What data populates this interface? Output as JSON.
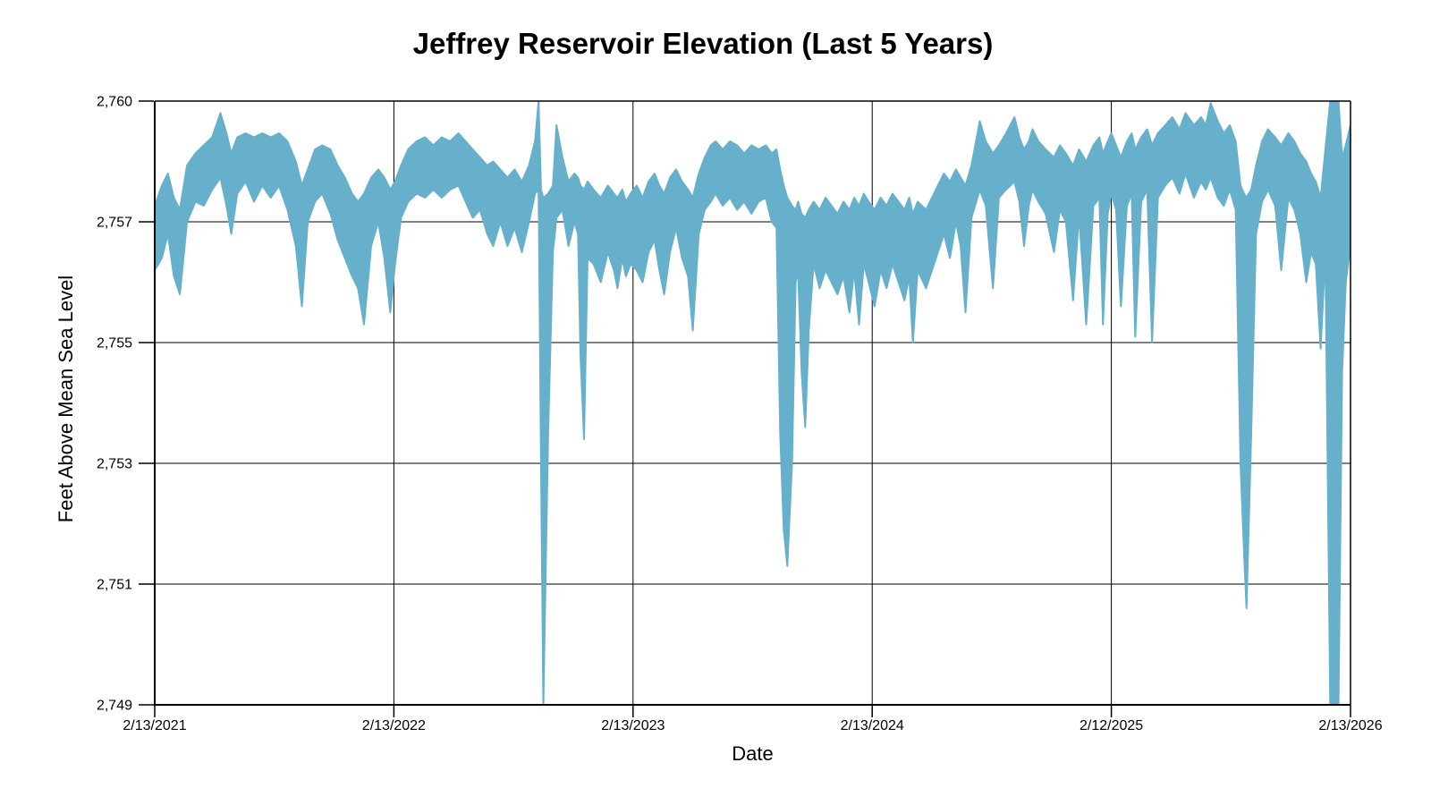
{
  "chart_data": {
    "type": "line",
    "title": "Jeffrey Reservoir Elevation (Last 5 Years)",
    "xlabel": "Date",
    "ylabel": "Feet Above Mean Sea Level",
    "x_tick_labels": [
      "2/13/2021",
      "2/13/2022",
      "2/13/2023",
      "2/13/2024",
      "2/12/2025",
      "2/13/2026"
    ],
    "y_tick_values": [
      2760,
      2757,
      2755,
      2753,
      2751,
      2749
    ],
    "y_tick_labels": [
      "2,760",
      "2,757",
      "2,755",
      "2,753",
      "2,751",
      "2,749"
    ],
    "ylim": [
      2749,
      2760
    ],
    "grid": true,
    "legend": false,
    "line_color": "#66B0CC",
    "axis_color": "#000000",
    "series_name": "Reservoir elevation",
    "band_format": [
      "x_permille_of_time_axis",
      "upper_ft",
      "lower_ft"
    ],
    "band": [
      [
        0,
        2757.4,
        2756.2
      ],
      [
        6,
        2757.9,
        2756.4
      ],
      [
        11,
        2758.2,
        2756.8
      ],
      [
        16,
        2757.6,
        2756.1
      ],
      [
        21,
        2757.3,
        2755.8
      ],
      [
        27,
        2758.4,
        2757.0
      ],
      [
        34,
        2758.7,
        2757.5
      ],
      [
        41,
        2758.9,
        2757.4
      ],
      [
        48,
        2759.1,
        2757.8
      ],
      [
        55,
        2759.7,
        2758.1
      ],
      [
        60,
        2759.2,
        2757.4
      ],
      [
        64,
        2758.7,
        2756.8
      ],
      [
        69,
        2759.1,
        2757.7
      ],
      [
        76,
        2759.2,
        2758.0
      ],
      [
        83,
        2759.1,
        2757.5
      ],
      [
        90,
        2759.2,
        2757.9
      ],
      [
        97,
        2759.1,
        2757.6
      ],
      [
        104,
        2759.2,
        2757.9
      ],
      [
        111,
        2759.0,
        2757.3
      ],
      [
        118,
        2758.5,
        2756.6
      ],
      [
        123,
        2757.9,
        2755.6
      ],
      [
        128,
        2758.3,
        2757.0
      ],
      [
        134,
        2758.8,
        2757.5
      ],
      [
        140,
        2758.9,
        2757.7
      ],
      [
        147,
        2758.8,
        2757.2
      ],
      [
        153,
        2758.4,
        2756.7
      ],
      [
        159,
        2758.1,
        2756.4
      ],
      [
        165,
        2757.7,
        2756.1
      ],
      [
        170,
        2757.5,
        2755.9
      ],
      [
        175,
        2757.7,
        2755.3
      ],
      [
        181,
        2758.1,
        2756.6
      ],
      [
        187,
        2758.3,
        2757.0
      ],
      [
        192,
        2758.1,
        2756.4
      ],
      [
        197,
        2757.8,
        2755.5
      ],
      [
        201,
        2758.0,
        2756.3
      ],
      [
        206,
        2758.4,
        2757.1
      ],
      [
        212,
        2758.8,
        2757.5
      ],
      [
        219,
        2759.0,
        2757.7
      ],
      [
        226,
        2759.1,
        2757.6
      ],
      [
        233,
        2758.9,
        2757.8
      ],
      [
        240,
        2759.1,
        2757.6
      ],
      [
        247,
        2759.0,
        2757.8
      ],
      [
        254,
        2759.2,
        2757.9
      ],
      [
        260,
        2759.0,
        2757.5
      ],
      [
        266,
        2758.8,
        2757.1
      ],
      [
        272,
        2758.6,
        2757.3
      ],
      [
        278,
        2758.4,
        2756.8
      ],
      [
        283,
        2758.5,
        2756.6
      ],
      [
        289,
        2758.3,
        2757.0
      ],
      [
        295,
        2758.1,
        2756.6
      ],
      [
        301,
        2758.3,
        2756.9
      ],
      [
        307,
        2758.0,
        2756.5
      ],
      [
        313,
        2758.4,
        2757.0
      ],
      [
        318,
        2759.0,
        2757.7
      ],
      [
        321,
        2760.0,
        2757.8
      ],
      [
        323,
        2757.8,
        2753.0
      ],
      [
        325,
        2757.6,
        2749.0
      ],
      [
        329,
        2757.7,
        2753.5
      ],
      [
        333,
        2757.9,
        2756.5
      ],
      [
        336,
        2759.4,
        2757.1
      ],
      [
        341,
        2758.6,
        2757.3
      ],
      [
        346,
        2758.0,
        2756.6
      ],
      [
        351,
        2758.2,
        2757.0
      ],
      [
        354,
        2758.1,
        2756.8
      ],
      [
        356,
        2757.9,
        2754.8
      ],
      [
        359,
        2757.8,
        2753.4
      ],
      [
        362,
        2758.0,
        2756.4
      ],
      [
        367,
        2757.8,
        2756.3
      ],
      [
        373,
        2757.6,
        2756.0
      ],
      [
        379,
        2757.9,
        2756.5
      ],
      [
        384,
        2757.7,
        2756.2
      ],
      [
        387,
        2757.6,
        2755.9
      ],
      [
        391,
        2757.8,
        2756.4
      ],
      [
        394,
        2757.5,
        2756.1
      ],
      [
        398,
        2757.7,
        2756.3
      ],
      [
        403,
        2757.9,
        2756.2
      ],
      [
        408,
        2757.6,
        2756.0
      ],
      [
        413,
        2758.0,
        2756.5
      ],
      [
        418,
        2758.2,
        2756.7
      ],
      [
        422,
        2757.9,
        2756.2
      ],
      [
        426,
        2757.7,
        2755.8
      ],
      [
        431,
        2758.1,
        2756.5
      ],
      [
        436,
        2758.3,
        2756.9
      ],
      [
        441,
        2758.0,
        2756.4
      ],
      [
        446,
        2757.8,
        2756.1
      ],
      [
        450,
        2757.6,
        2755.2
      ],
      [
        455,
        2758.2,
        2756.8
      ],
      [
        460,
        2758.6,
        2757.3
      ],
      [
        465,
        2758.9,
        2757.5
      ],
      [
        469,
        2759.0,
        2757.7
      ],
      [
        475,
        2758.8,
        2757.4
      ],
      [
        481,
        2759.0,
        2757.6
      ],
      [
        487,
        2758.9,
        2757.3
      ],
      [
        493,
        2758.7,
        2757.5
      ],
      [
        499,
        2758.9,
        2757.2
      ],
      [
        505,
        2758.8,
        2757.5
      ],
      [
        511,
        2758.9,
        2757.6
      ],
      [
        516,
        2758.7,
        2757.0
      ],
      [
        520,
        2758.8,
        2756.9
      ],
      [
        523,
        2758.3,
        2753.5
      ],
      [
        526,
        2757.9,
        2751.9
      ],
      [
        529,
        2757.6,
        2751.3
      ],
      [
        533,
        2757.4,
        2753.0
      ],
      [
        536,
        2757.3,
        2756.0
      ],
      [
        538,
        2757.5,
        2756.2
      ],
      [
        541,
        2757.2,
        2754.5
      ],
      [
        544,
        2757.1,
        2753.6
      ],
      [
        547,
        2757.3,
        2755.2
      ],
      [
        551,
        2757.5,
        2756.3
      ],
      [
        556,
        2757.3,
        2755.9
      ],
      [
        561,
        2757.6,
        2756.2
      ],
      [
        566,
        2757.4,
        2756.0
      ],
      [
        571,
        2757.2,
        2755.8
      ],
      [
        576,
        2757.5,
        2756.1
      ],
      [
        581,
        2757.3,
        2755.5
      ],
      [
        585,
        2757.6,
        2756.2
      ],
      [
        589,
        2757.4,
        2755.3
      ],
      [
        593,
        2757.7,
        2756.3
      ],
      [
        597,
        2757.5,
        2756.0
      ],
      [
        602,
        2757.3,
        2755.6
      ],
      [
        607,
        2757.6,
        2756.2
      ],
      [
        612,
        2757.4,
        2755.9
      ],
      [
        617,
        2757.7,
        2756.3
      ],
      [
        622,
        2757.5,
        2756.0
      ],
      [
        627,
        2757.3,
        2755.7
      ],
      [
        631,
        2757.6,
        2756.1
      ],
      [
        634,
        2757.2,
        2755.0
      ],
      [
        638,
        2757.5,
        2756.2
      ],
      [
        645,
        2757.3,
        2755.9
      ],
      [
        650,
        2757.6,
        2756.2
      ],
      [
        655,
        2757.9,
        2756.5
      ],
      [
        660,
        2758.2,
        2756.8
      ],
      [
        665,
        2758.0,
        2756.4
      ],
      [
        670,
        2758.3,
        2757.0
      ],
      [
        674,
        2758.1,
        2756.6
      ],
      [
        678,
        2757.9,
        2755.5
      ],
      [
        683,
        2758.4,
        2757.1
      ],
      [
        690,
        2759.5,
        2757.8
      ],
      [
        695,
        2759.0,
        2757.4
      ],
      [
        701,
        2758.7,
        2755.9
      ],
      [
        706,
        2758.9,
        2757.6
      ],
      [
        712,
        2759.2,
        2757.8
      ],
      [
        719,
        2759.6,
        2758.0
      ],
      [
        723,
        2759.1,
        2757.5
      ],
      [
        727,
        2758.8,
        2756.6
      ],
      [
        731,
        2759.0,
        2757.4
      ],
      [
        734,
        2759.3,
        2757.8
      ],
      [
        739,
        2759.0,
        2757.5
      ],
      [
        745,
        2758.8,
        2757.2
      ],
      [
        752,
        2758.6,
        2756.5
      ],
      [
        757,
        2758.9,
        2757.3
      ],
      [
        762,
        2758.7,
        2757.0
      ],
      [
        768,
        2758.4,
        2755.7
      ],
      [
        773,
        2758.8,
        2757.2
      ],
      [
        779,
        2758.5,
        2755.3
      ],
      [
        785,
        2758.9,
        2757.4
      ],
      [
        790,
        2759.1,
        2757.6
      ],
      [
        793,
        2758.7,
        2755.3
      ],
      [
        797,
        2759.0,
        2757.2
      ],
      [
        800,
        2759.2,
        2757.7
      ],
      [
        804,
        2758.9,
        2757.3
      ],
      [
        808,
        2758.6,
        2755.6
      ],
      [
        813,
        2759.0,
        2757.4
      ],
      [
        817,
        2759.2,
        2757.7
      ],
      [
        820,
        2758.8,
        2755.1
      ],
      [
        825,
        2759.1,
        2757.5
      ],
      [
        830,
        2759.3,
        2757.8
      ],
      [
        834,
        2758.9,
        2755.0
      ],
      [
        839,
        2759.2,
        2757.6
      ],
      [
        845,
        2759.4,
        2757.9
      ],
      [
        851,
        2759.6,
        2758.1
      ],
      [
        857,
        2759.3,
        2757.7
      ],
      [
        862,
        2759.7,
        2758.2
      ],
      [
        869,
        2759.4,
        2757.6
      ],
      [
        875,
        2759.6,
        2758.0
      ],
      [
        879,
        2759.4,
        2757.8
      ],
      [
        883,
        2759.95,
        2758.1
      ],
      [
        889,
        2759.5,
        2757.6
      ],
      [
        894,
        2759.2,
        2757.4
      ],
      [
        899,
        2759.4,
        2757.8
      ],
      [
        904,
        2759.0,
        2757.3
      ],
      [
        908,
        2757.9,
        2753.0
      ],
      [
        911,
        2757.7,
        2751.5
      ],
      [
        913,
        2757.6,
        2750.6
      ],
      [
        917,
        2757.8,
        2753.5
      ],
      [
        921,
        2758.4,
        2756.8
      ],
      [
        926,
        2759.0,
        2757.5
      ],
      [
        931,
        2759.3,
        2757.8
      ],
      [
        937,
        2759.1,
        2757.4
      ],
      [
        942,
        2758.9,
        2756.2
      ],
      [
        948,
        2759.2,
        2757.6
      ],
      [
        953,
        2759.0,
        2757.3
      ],
      [
        958,
        2758.7,
        2756.8
      ],
      [
        963,
        2758.5,
        2756.0
      ],
      [
        967,
        2758.2,
        2756.5
      ],
      [
        971,
        2758.0,
        2756.3
      ],
      [
        975,
        2757.6,
        2754.9
      ],
      [
        979,
        2758.8,
        2756.5
      ],
      [
        983,
        2760.0,
        2749.0
      ],
      [
        990,
        2760.0,
        2749.0
      ],
      [
        993,
        2758.6,
        2754.5
      ],
      [
        996,
        2758.9,
        2756.0
      ],
      [
        1000,
        2759.4,
        2756.6
      ]
    ]
  }
}
